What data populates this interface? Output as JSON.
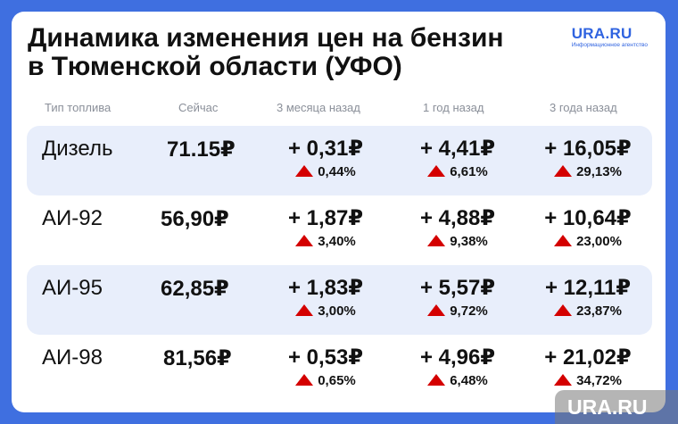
{
  "title": {
    "line1": "Динамика изменения цен на бензин",
    "line2": "в Тюменской области (УФО)"
  },
  "brand": {
    "name": "URA.RU",
    "subtitle": "Информационное агентство"
  },
  "headers": {
    "fuel": "Тип топлива",
    "now": "Сейчас",
    "m3": "3 месяца назад",
    "y1": "1 год назад",
    "y3": "3 года назад"
  },
  "rows": [
    {
      "fuel": "Дизель",
      "now": "71.15₽",
      "m3": {
        "delta": "+ 0,31₽",
        "pct": "0,44%"
      },
      "y1": {
        "delta": "+ 4,41₽",
        "pct": "6,61%"
      },
      "y3": {
        "delta": "+ 16,05₽",
        "pct": "29,13%"
      }
    },
    {
      "fuel": "АИ-92",
      "now": "56,90₽",
      "m3": {
        "delta": "+ 1,87₽",
        "pct": "3,40%"
      },
      "y1": {
        "delta": "+ 4,88₽",
        "pct": "9,38%"
      },
      "y3": {
        "delta": "+ 10,64₽",
        "pct": "23,00%"
      }
    },
    {
      "fuel": "АИ-95",
      "now": "62,85₽",
      "m3": {
        "delta": "+ 1,83₽",
        "pct": "3,00%"
      },
      "y1": {
        "delta": "+ 5,57₽",
        "pct": "9,72%"
      },
      "y3": {
        "delta": "+ 12,11₽",
        "pct": "23,87%"
      }
    },
    {
      "fuel": "АИ-98",
      "now": "81,56₽",
      "m3": {
        "delta": "+ 0,53₽",
        "pct": "0,65%"
      },
      "y1": {
        "delta": "+ 4,96₽",
        "pct": "6,48%"
      },
      "y3": {
        "delta": "+ 21,02₽",
        "pct": "34,72%"
      }
    }
  ],
  "icons": {
    "increase": "triangle-up-icon"
  },
  "colors": {
    "accent": "#2f63e0",
    "increase": "#d40000",
    "row_shade": "#e8eefb",
    "background": "#3f6fe0"
  },
  "watermark": "URA.RU"
}
